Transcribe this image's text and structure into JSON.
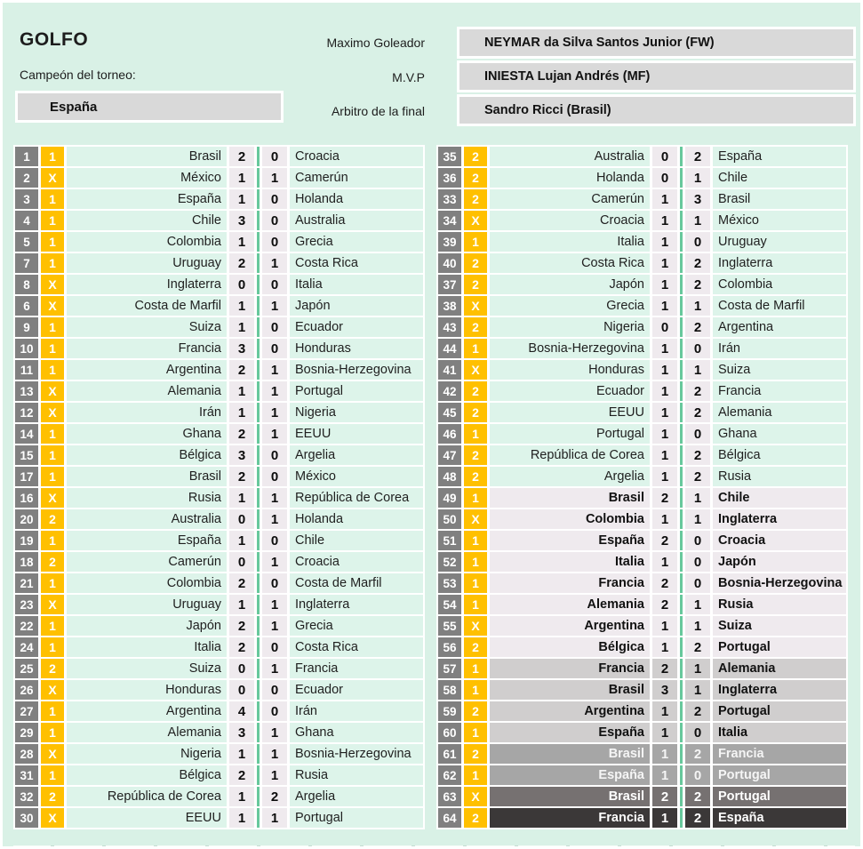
{
  "header": {
    "title": "GOLFO",
    "champion_label": "Campeón del torneo:",
    "champion_value": "España",
    "fields": [
      {
        "label": "Maximo Goleador",
        "value": "NEYMAR da Silva Santos Junior (FW)"
      },
      {
        "label": "M.V.P",
        "value": "INIESTA Lujan Andrés (MF)"
      },
      {
        "label": "Arbitro de la final",
        "value": "Sandro Ricci (Brasil)"
      }
    ]
  },
  "colors": {
    "bg": "#d9f1e6",
    "cell_mint": "#ddf4ea",
    "cell_pink": "#efeaee",
    "cell_qf": "#d0cece",
    "cell_sf": "#a6a6a6",
    "cell_third": "#767171",
    "cell_final": "#3b3838",
    "badge_num": "#808080",
    "badge_pick": "#ffc000",
    "divider": "#67c89c",
    "box_gray": "#d9d9d9"
  },
  "matches": {
    "left": [
      {
        "n": "1",
        "pick": "1",
        "home": "Brasil",
        "hs": "2",
        "as": "0",
        "away": "Croacia",
        "stage": "group"
      },
      {
        "n": "2",
        "pick": "X",
        "home": "México",
        "hs": "1",
        "as": "1",
        "away": "Camerún",
        "stage": "group"
      },
      {
        "n": "3",
        "pick": "1",
        "home": "España",
        "hs": "1",
        "as": "0",
        "away": "Holanda",
        "stage": "group"
      },
      {
        "n": "4",
        "pick": "1",
        "home": "Chile",
        "hs": "3",
        "as": "0",
        "away": "Australia",
        "stage": "group"
      },
      {
        "n": "5",
        "pick": "1",
        "home": "Colombia",
        "hs": "1",
        "as": "0",
        "away": "Grecia",
        "stage": "group"
      },
      {
        "n": "7",
        "pick": "1",
        "home": "Uruguay",
        "hs": "2",
        "as": "1",
        "away": "Costa Rica",
        "stage": "group"
      },
      {
        "n": "8",
        "pick": "X",
        "home": "Inglaterra",
        "hs": "0",
        "as": "0",
        "away": "Italia",
        "stage": "group"
      },
      {
        "n": "6",
        "pick": "X",
        "home": "Costa de Marfil",
        "hs": "1",
        "as": "1",
        "away": "Japón",
        "stage": "group"
      },
      {
        "n": "9",
        "pick": "1",
        "home": "Suiza",
        "hs": "1",
        "as": "0",
        "away": "Ecuador",
        "stage": "group"
      },
      {
        "n": "10",
        "pick": "1",
        "home": "Francia",
        "hs": "3",
        "as": "0",
        "away": "Honduras",
        "stage": "group"
      },
      {
        "n": "11",
        "pick": "1",
        "home": "Argentina",
        "hs": "2",
        "as": "1",
        "away": "Bosnia-Herzegovina",
        "stage": "group"
      },
      {
        "n": "13",
        "pick": "X",
        "home": "Alemania",
        "hs": "1",
        "as": "1",
        "away": "Portugal",
        "stage": "group"
      },
      {
        "n": "12",
        "pick": "X",
        "home": "Irán",
        "hs": "1",
        "as": "1",
        "away": "Nigeria",
        "stage": "group"
      },
      {
        "n": "14",
        "pick": "1",
        "home": "Ghana",
        "hs": "2",
        "as": "1",
        "away": "EEUU",
        "stage": "group"
      },
      {
        "n": "15",
        "pick": "1",
        "home": "Bélgica",
        "hs": "3",
        "as": "0",
        "away": "Argelia",
        "stage": "group"
      },
      {
        "n": "17",
        "pick": "1",
        "home": "Brasil",
        "hs": "2",
        "as": "0",
        "away": "México",
        "stage": "group"
      },
      {
        "n": "16",
        "pick": "X",
        "home": "Rusia",
        "hs": "1",
        "as": "1",
        "away": "República de Corea",
        "stage": "group"
      },
      {
        "n": "20",
        "pick": "2",
        "home": "Australia",
        "hs": "0",
        "as": "1",
        "away": "Holanda",
        "stage": "group"
      },
      {
        "n": "19",
        "pick": "1",
        "home": "España",
        "hs": "1",
        "as": "0",
        "away": "Chile",
        "stage": "group"
      },
      {
        "n": "18",
        "pick": "2",
        "home": "Camerún",
        "hs": "0",
        "as": "1",
        "away": "Croacia",
        "stage": "group"
      },
      {
        "n": "21",
        "pick": "1",
        "home": "Colombia",
        "hs": "2",
        "as": "0",
        "away": "Costa de Marfil",
        "stage": "group"
      },
      {
        "n": "23",
        "pick": "X",
        "home": "Uruguay",
        "hs": "1",
        "as": "1",
        "away": "Inglaterra",
        "stage": "group"
      },
      {
        "n": "22",
        "pick": "1",
        "home": "Japón",
        "hs": "2",
        "as": "1",
        "away": "Grecia",
        "stage": "group"
      },
      {
        "n": "24",
        "pick": "1",
        "home": "Italia",
        "hs": "2",
        "as": "0",
        "away": "Costa Rica",
        "stage": "group"
      },
      {
        "n": "25",
        "pick": "2",
        "home": "Suiza",
        "hs": "0",
        "as": "1",
        "away": "Francia",
        "stage": "group"
      },
      {
        "n": "26",
        "pick": "X",
        "home": "Honduras",
        "hs": "0",
        "as": "0",
        "away": "Ecuador",
        "stage": "group"
      },
      {
        "n": "27",
        "pick": "1",
        "home": "Argentina",
        "hs": "4",
        "as": "0",
        "away": "Irán",
        "stage": "group"
      },
      {
        "n": "29",
        "pick": "1",
        "home": "Alemania",
        "hs": "3",
        "as": "1",
        "away": "Ghana",
        "stage": "group"
      },
      {
        "n": "28",
        "pick": "X",
        "home": "Nigeria",
        "hs": "1",
        "as": "1",
        "away": "Bosnia-Herzegovina",
        "stage": "group"
      },
      {
        "n": "31",
        "pick": "1",
        "home": "Bélgica",
        "hs": "2",
        "as": "1",
        "away": "Rusia",
        "stage": "group"
      },
      {
        "n": "32",
        "pick": "2",
        "home": "República de Corea",
        "hs": "1",
        "as": "2",
        "away": "Argelia",
        "stage": "group"
      },
      {
        "n": "30",
        "pick": "X",
        "home": "EEUU",
        "hs": "1",
        "as": "1",
        "away": "Portugal",
        "stage": "group"
      }
    ],
    "right": [
      {
        "n": "35",
        "pick": "2",
        "home": "Australia",
        "hs": "0",
        "as": "2",
        "away": "España",
        "stage": "group"
      },
      {
        "n": "36",
        "pick": "2",
        "home": "Holanda",
        "hs": "0",
        "as": "1",
        "away": "Chile",
        "stage": "group"
      },
      {
        "n": "33",
        "pick": "2",
        "home": "Camerún",
        "hs": "1",
        "as": "3",
        "away": "Brasil",
        "stage": "group"
      },
      {
        "n": "34",
        "pick": "X",
        "home": "Croacia",
        "hs": "1",
        "as": "1",
        "away": "México",
        "stage": "group"
      },
      {
        "n": "39",
        "pick": "1",
        "home": "Italia",
        "hs": "1",
        "as": "0",
        "away": "Uruguay",
        "stage": "group"
      },
      {
        "n": "40",
        "pick": "2",
        "home": "Costa Rica",
        "hs": "1",
        "as": "2",
        "away": "Inglaterra",
        "stage": "group"
      },
      {
        "n": "37",
        "pick": "2",
        "home": "Japón",
        "hs": "1",
        "as": "2",
        "away": "Colombia",
        "stage": "group"
      },
      {
        "n": "38",
        "pick": "X",
        "home": "Grecia",
        "hs": "1",
        "as": "1",
        "away": "Costa de Marfil",
        "stage": "group"
      },
      {
        "n": "43",
        "pick": "2",
        "home": "Nigeria",
        "hs": "0",
        "as": "2",
        "away": "Argentina",
        "stage": "group"
      },
      {
        "n": "44",
        "pick": "1",
        "home": "Bosnia-Herzegovina",
        "hs": "1",
        "as": "0",
        "away": "Irán",
        "stage": "group"
      },
      {
        "n": "41",
        "pick": "X",
        "home": "Honduras",
        "hs": "1",
        "as": "1",
        "away": "Suiza",
        "stage": "group"
      },
      {
        "n": "42",
        "pick": "2",
        "home": "Ecuador",
        "hs": "1",
        "as": "2",
        "away": "Francia",
        "stage": "group"
      },
      {
        "n": "45",
        "pick": "2",
        "home": "EEUU",
        "hs": "1",
        "as": "2",
        "away": "Alemania",
        "stage": "group"
      },
      {
        "n": "46",
        "pick": "1",
        "home": "Portugal",
        "hs": "1",
        "as": "0",
        "away": "Ghana",
        "stage": "group"
      },
      {
        "n": "47",
        "pick": "2",
        "home": "República de Corea",
        "hs": "1",
        "as": "2",
        "away": "Bélgica",
        "stage": "group"
      },
      {
        "n": "48",
        "pick": "2",
        "home": "Argelia",
        "hs": "1",
        "as": "2",
        "away": "Rusia",
        "stage": "group"
      },
      {
        "n": "49",
        "pick": "1",
        "home": "Brasil",
        "hs": "2",
        "as": "1",
        "away": "Chile",
        "stage": "round16"
      },
      {
        "n": "50",
        "pick": "X",
        "home": "Colombia",
        "hs": "1",
        "as": "1",
        "away": "Inglaterra",
        "stage": "round16"
      },
      {
        "n": "51",
        "pick": "1",
        "home": "España",
        "hs": "2",
        "as": "0",
        "away": "Croacia",
        "stage": "round16"
      },
      {
        "n": "52",
        "pick": "1",
        "home": "Italia",
        "hs": "1",
        "as": "0",
        "away": "Japón",
        "stage": "round16"
      },
      {
        "n": "53",
        "pick": "1",
        "home": "Francia",
        "hs": "2",
        "as": "0",
        "away": "Bosnia-Herzegovina",
        "stage": "round16"
      },
      {
        "n": "54",
        "pick": "1",
        "home": "Alemania",
        "hs": "2",
        "as": "1",
        "away": "Rusia",
        "stage": "round16"
      },
      {
        "n": "55",
        "pick": "X",
        "home": "Argentina",
        "hs": "1",
        "as": "1",
        "away": "Suiza",
        "stage": "round16"
      },
      {
        "n": "56",
        "pick": "2",
        "home": "Bélgica",
        "hs": "1",
        "as": "2",
        "away": "Portugal",
        "stage": "round16"
      },
      {
        "n": "57",
        "pick": "1",
        "home": "Francia",
        "hs": "2",
        "as": "1",
        "away": "Alemania",
        "stage": "quarter"
      },
      {
        "n": "58",
        "pick": "1",
        "home": "Brasil",
        "hs": "3",
        "as": "1",
        "away": "Inglaterra",
        "stage": "quarter"
      },
      {
        "n": "59",
        "pick": "2",
        "home": "Argentina",
        "hs": "1",
        "as": "2",
        "away": "Portugal",
        "stage": "quarter"
      },
      {
        "n": "60",
        "pick": "1",
        "home": "España",
        "hs": "1",
        "as": "0",
        "away": "Italia",
        "stage": "quarter"
      },
      {
        "n": "61",
        "pick": "2",
        "home": "Brasil",
        "hs": "1",
        "as": "2",
        "away": "Francia",
        "stage": "semi"
      },
      {
        "n": "62",
        "pick": "1",
        "home": "España",
        "hs": "1",
        "as": "0",
        "away": "Portugal",
        "stage": "semi"
      },
      {
        "n": "63",
        "pick": "X",
        "home": "Brasil",
        "hs": "2",
        "as": "2",
        "away": "Portugal",
        "stage": "third"
      },
      {
        "n": "64",
        "pick": "2",
        "home": "Francia",
        "hs": "1",
        "as": "2",
        "away": "España",
        "stage": "final"
      }
    ]
  }
}
